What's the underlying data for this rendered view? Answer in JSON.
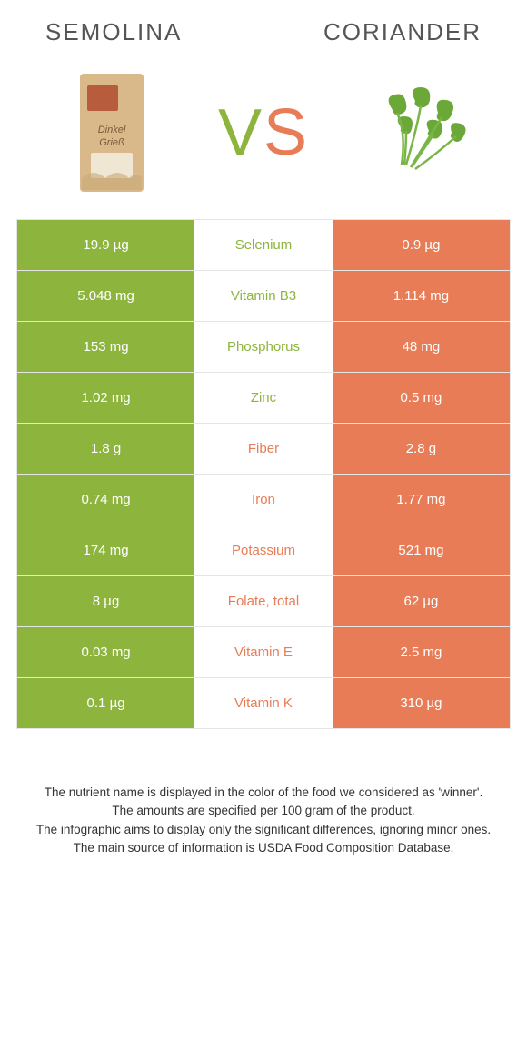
{
  "header": {
    "left": "SEMOLINA",
    "right": "CORIANDER",
    "vs": "VS"
  },
  "colors": {
    "left_food": "#8db53e",
    "right_food": "#e87c56",
    "row_border": "#e5e5e5",
    "cell_text": "#ffffff",
    "background": "#ffffff"
  },
  "typography": {
    "header_fontsize": 26,
    "vs_fontsize": 72,
    "cell_fontsize": 15,
    "footer_fontsize": 13.5
  },
  "images": {
    "left_alt": "semolina-package",
    "right_alt": "coriander-leaves"
  },
  "nutrients": [
    {
      "name": "Selenium",
      "left": "19.9 µg",
      "right": "0.9 µg",
      "winner": "left"
    },
    {
      "name": "Vitamin B3",
      "left": "5.048 mg",
      "right": "1.114 mg",
      "winner": "left"
    },
    {
      "name": "Phosphorus",
      "left": "153 mg",
      "right": "48 mg",
      "winner": "left"
    },
    {
      "name": "Zinc",
      "left": "1.02 mg",
      "right": "0.5 mg",
      "winner": "left"
    },
    {
      "name": "Fiber",
      "left": "1.8 g",
      "right": "2.8 g",
      "winner": "right"
    },
    {
      "name": "Iron",
      "left": "0.74 mg",
      "right": "1.77 mg",
      "winner": "right"
    },
    {
      "name": "Potassium",
      "left": "174 mg",
      "right": "521 mg",
      "winner": "right"
    },
    {
      "name": "Folate, total",
      "left": "8 µg",
      "right": "62 µg",
      "winner": "right"
    },
    {
      "name": "Vitamin E",
      "left": "0.03 mg",
      "right": "2.5 mg",
      "winner": "right"
    },
    {
      "name": "Vitamin K",
      "left": "0.1 µg",
      "right": "310 µg",
      "winner": "right"
    }
  ],
  "footer": {
    "line1": "The nutrient name is displayed in the color of the food we considered as 'winner'.",
    "line2": "The amounts are specified per 100 gram of the product.",
    "line3": "The infographic aims to display only the significant differences, ignoring minor ones.",
    "line4": "The main source of information is USDA Food Composition Database."
  }
}
